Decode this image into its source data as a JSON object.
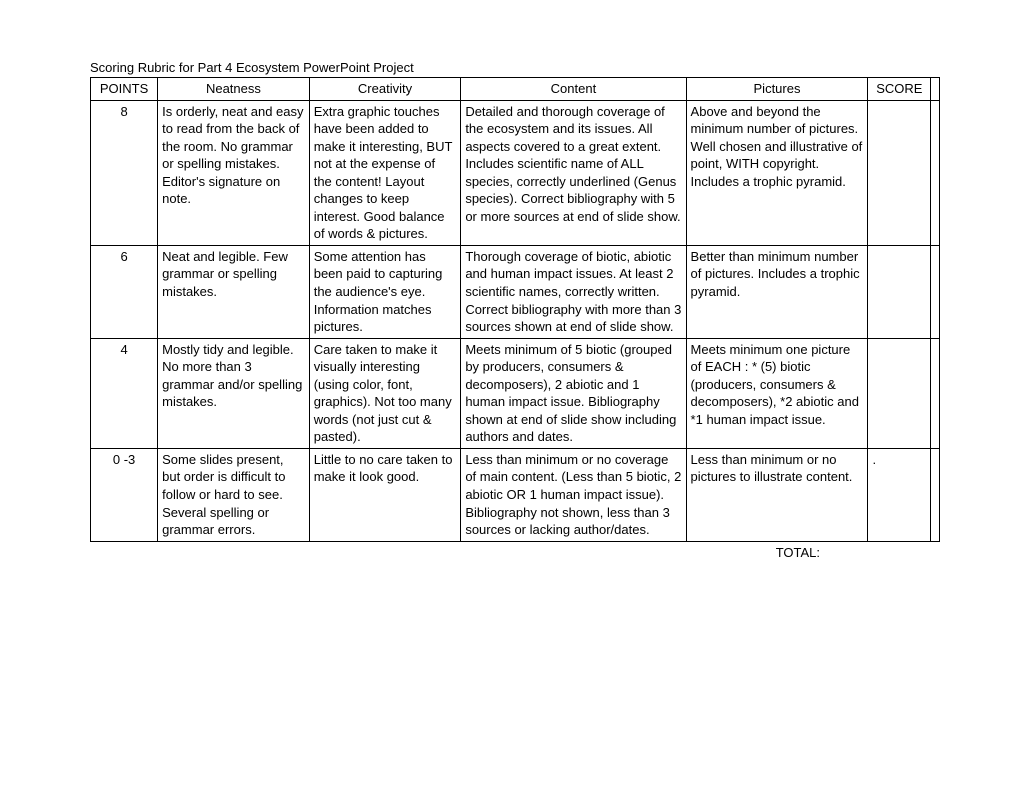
{
  "title": "Scoring Rubric for Part 4  Ecosystem PowerPoint Project",
  "headers": {
    "points": "POINTS",
    "neatness": "Neatness",
    "creativity": "Creativity",
    "content": "Content",
    "pictures": "Pictures",
    "score": "SCORE"
  },
  "rows": [
    {
      "points": "8",
      "neatness": "Is orderly, neat and easy to read from the back of the room.  No grammar or spelling mistakes.  Editor's signature on note.",
      "creativity": "Extra graphic touches have been added to make it interesting, BUT not at the expense of the content! Layout changes to keep interest.  Good balance of words & pictures.",
      "content": "Detailed and thorough coverage of the ecosystem and its issues.  All aspects covered to a great extent. Includes scientific name of ALL species, correctly underlined (Genus species). Correct bibliography with 5 or more sources at end of slide show.",
      "pictures": "Above and beyond the minimum number of pictures.  Well chosen and illustrative of point, WITH copyright.  Includes a trophic pyramid.",
      "score": ""
    },
    {
      "points": "6",
      "neatness": "Neat and legible. Few grammar or spelling mistakes.",
      "creativity": "Some attention has been paid to capturing the audience's eye.  Information matches pictures.",
      "content": "Thorough coverage of biotic, abiotic and human impact issues. At least 2 scientific names, correctly written. Correct bibliography with more than 3 sources shown at end of slide show.",
      "pictures": "Better than minimum number of pictures. Includes a trophic pyramid.",
      "score": ""
    },
    {
      "points": "4",
      "neatness": "Mostly tidy and legible. No more than 3 grammar and/or spelling mistakes.",
      "creativity": "Care taken to make it visually interesting (using color, font, graphics).  Not too many words (not just cut & pasted).",
      "content": "Meets minimum of 5 biotic (grouped by producers, consumers & decomposers), 2 abiotic and 1 human impact issue.  Bibliography shown at end of slide show including authors and dates.",
      "pictures": "Meets minimum one picture of EACH :\n* (5) biotic (producers, consumers & decomposers),\n*2 abiotic and\n*1 human impact issue.",
      "score": ""
    },
    {
      "points": "0 -3",
      "neatness": "Some slides present, but order is difficult to follow or hard to see. Several spelling or grammar errors.",
      "creativity": "Little to no care taken to make it look good.",
      "content": "Less than minimum or no coverage of main content. (Less than 5 biotic, 2 abiotic OR 1 human impact issue). Bibliography not shown, less than 3 sources or lacking author/dates.",
      "pictures": "Less than minimum or no pictures to illustrate content.",
      "score": "."
    }
  ],
  "total_label": "TOTAL:"
}
